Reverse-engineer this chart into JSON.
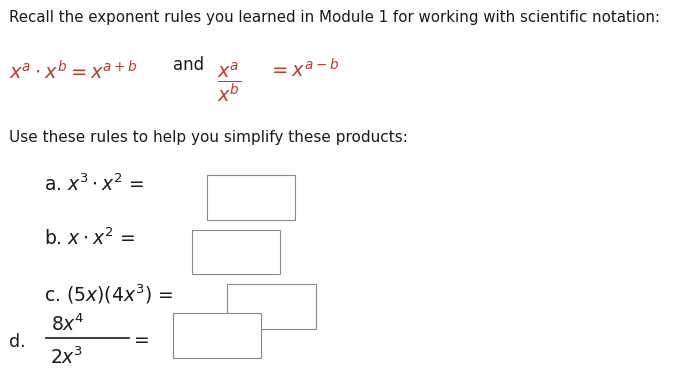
{
  "bg_color": "#ffffff",
  "text_color_black": "#1a1a1a",
  "text_color_red": "#c0392b",
  "figsize": [
    6.79,
    3.89
  ],
  "dpi": 100,
  "header_text": "Recall the exponent rules you learned in Module 1 for working with scientific notation:",
  "use_text": "Use these rules to help you simplify these products:",
  "fs_header": 10.8,
  "fs_rule": 14,
  "fs_body": 11.0,
  "fs_math": 13.5,
  "fs_label": 12.5
}
